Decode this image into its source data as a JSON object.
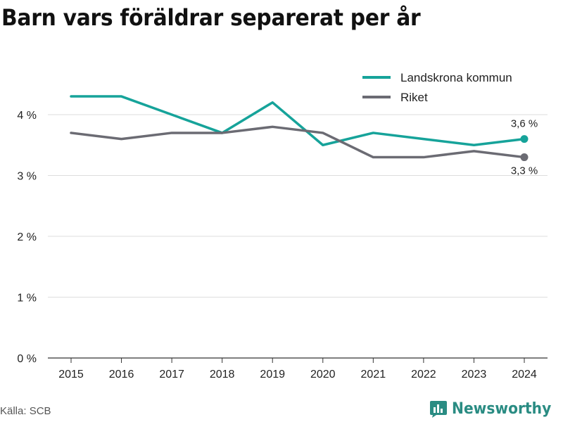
{
  "title": "Barn vars föräldrar separerat per år",
  "source": "Källa: SCB",
  "brand": {
    "name": "Newsworthy",
    "icon": "newsworthy-logo-icon",
    "color": "#2a8c83"
  },
  "chart_data": {
    "type": "line",
    "x": [
      "2015",
      "2016",
      "2017",
      "2018",
      "2019",
      "2020",
      "2021",
      "2022",
      "2023",
      "2024"
    ],
    "ylim": [
      0,
      4.5
    ],
    "yticks": [
      0,
      1,
      2,
      3,
      4
    ],
    "ytick_labels": [
      "0 %",
      "1 %",
      "2 %",
      "3 %",
      "4 %"
    ],
    "grid": true,
    "legend_position": "top-right",
    "series": [
      {
        "name": "Landskrona kommun",
        "color": "#16a39a",
        "values": [
          4.3,
          4.3,
          4.0,
          3.7,
          4.2,
          3.5,
          3.7,
          3.6,
          3.5,
          3.6
        ],
        "end_label": "3,6 %"
      },
      {
        "name": "Riket",
        "color": "#6b6b73",
        "values": [
          3.7,
          3.6,
          3.7,
          3.7,
          3.8,
          3.7,
          3.3,
          3.3,
          3.4,
          3.3
        ],
        "end_label": "3,3 %"
      }
    ]
  }
}
